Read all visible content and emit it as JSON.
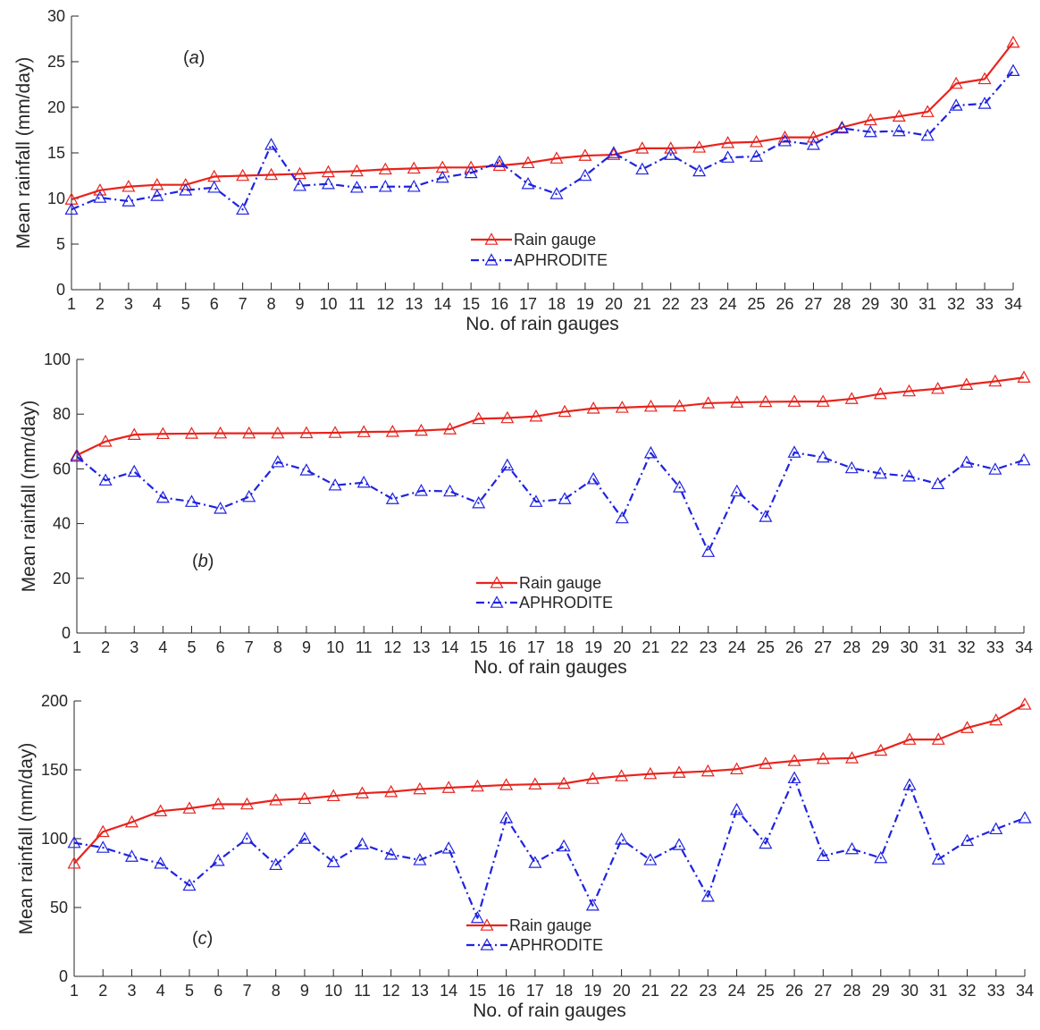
{
  "chart_data": [
    {
      "type": "line",
      "panel_label": "a",
      "xlabel": "No. of rain gauges",
      "ylabel": "Mean rainfall (mm/day)",
      "ylim": [
        0,
        30
      ],
      "yticks": [
        "0",
        "5",
        "10",
        "15",
        "20",
        "25",
        "30"
      ],
      "xlim": [
        1,
        34
      ],
      "x": [
        1,
        2,
        3,
        4,
        5,
        6,
        7,
        8,
        9,
        10,
        11,
        12,
        13,
        14,
        15,
        16,
        17,
        18,
        19,
        20,
        21,
        22,
        23,
        24,
        25,
        26,
        27,
        28,
        29,
        30,
        31,
        32,
        33,
        34
      ],
      "grid": false,
      "legend_position": "lower-center",
      "series": [
        {
          "name": "Rain gauge",
          "color": "#e8231c",
          "line_style": "solid",
          "marker": "triangle",
          "values": [
            9.9,
            10.9,
            11.3,
            11.5,
            11.5,
            12.4,
            12.5,
            12.6,
            12.7,
            12.9,
            13.0,
            13.2,
            13.3,
            13.4,
            13.4,
            13.6,
            13.9,
            14.4,
            14.7,
            14.8,
            15.5,
            15.5,
            15.6,
            16.1,
            16.2,
            16.7,
            16.7,
            17.8,
            18.6,
            19.0,
            19.5,
            22.6,
            23.1,
            27.1
          ]
        },
        {
          "name": "APHRODITE",
          "color": "#1f23e0",
          "line_style": "dash-dot",
          "marker": "triangle",
          "values": [
            8.8,
            10.1,
            9.7,
            10.3,
            10.9,
            11.2,
            8.8,
            15.9,
            11.4,
            11.6,
            11.2,
            11.3,
            11.3,
            12.3,
            12.8,
            14.0,
            11.6,
            10.5,
            12.5,
            15.0,
            13.2,
            14.8,
            13.0,
            14.5,
            14.6,
            16.3,
            15.9,
            17.7,
            17.3,
            17.4,
            16.9,
            20.2,
            20.4,
            24.0
          ]
        }
      ]
    },
    {
      "type": "line",
      "panel_label": "b",
      "xlabel": "No. of rain gauges",
      "ylabel": "Mean rainfall (mm/day)",
      "ylim": [
        0,
        100
      ],
      "yticks": [
        "0",
        "20",
        "40",
        "60",
        "80",
        "100"
      ],
      "xlim": [
        1,
        34
      ],
      "x": [
        1,
        2,
        3,
        4,
        5,
        6,
        7,
        8,
        9,
        10,
        11,
        12,
        13,
        14,
        15,
        16,
        17,
        18,
        19,
        20,
        21,
        22,
        23,
        24,
        25,
        26,
        27,
        28,
        29,
        30,
        31,
        32,
        33,
        34
      ],
      "grid": false,
      "legend_position": "lower-center",
      "series": [
        {
          "name": "Rain gauge",
          "color": "#e8231c",
          "line_style": "solid",
          "marker": "triangle",
          "values": [
            65,
            70,
            72.5,
            72.8,
            72.9,
            73,
            73,
            73,
            73.1,
            73.2,
            73.5,
            73.6,
            74,
            74.5,
            78.3,
            78.6,
            79.2,
            80.9,
            82.1,
            82.4,
            82.8,
            82.9,
            84,
            84.3,
            84.5,
            84.6,
            84.6,
            85.6,
            87.4,
            88.4,
            89.3,
            90.8,
            92,
            93.4
          ]
        },
        {
          "name": "APHRODITE",
          "color": "#1f23e0",
          "line_style": "dash-dot",
          "marker": "triangle",
          "values": [
            64.5,
            55.8,
            59,
            49.5,
            48,
            45.5,
            49.8,
            62.5,
            59.5,
            54,
            55,
            49,
            52,
            51.8,
            47.5,
            61.3,
            48,
            49,
            56.3,
            42,
            65.8,
            53.3,
            29.7,
            51.8,
            42.5,
            66,
            64.2,
            60.3,
            58.3,
            57.3,
            54.5,
            62.4,
            59.8,
            63.2
          ]
        }
      ]
    },
    {
      "type": "line",
      "panel_label": "c",
      "xlabel": "No. of rain gauges",
      "ylabel": "Mean rainfall (mm/day)",
      "ylim": [
        0,
        200
      ],
      "yticks": [
        "0",
        "50",
        "100",
        "150",
        "200"
      ],
      "xlim": [
        1,
        34
      ],
      "x": [
        1,
        2,
        3,
        4,
        5,
        6,
        7,
        8,
        9,
        10,
        11,
        12,
        13,
        14,
        15,
        16,
        17,
        18,
        19,
        20,
        21,
        22,
        23,
        24,
        25,
        26,
        27,
        28,
        29,
        30,
        31,
        32,
        33,
        34
      ],
      "grid": false,
      "legend_position": "lower-center",
      "series": [
        {
          "name": "Rain gauge",
          "color": "#e8231c",
          "line_style": "solid",
          "marker": "triangle",
          "values": [
            82,
            105,
            112,
            120,
            122,
            125,
            125,
            128,
            129,
            131,
            133,
            134,
            136,
            137,
            138,
            139,
            139.5,
            140,
            143.5,
            145.5,
            147,
            148,
            149,
            150.5,
            154.5,
            156.5,
            158,
            158.5,
            164,
            172,
            172,
            180.5,
            186,
            197.5
          ]
        },
        {
          "name": "APHRODITE",
          "color": "#1f23e0",
          "line_style": "dash-dot",
          "marker": "triangle",
          "values": [
            97,
            93.5,
            87,
            82,
            66,
            84,
            100,
            81,
            100,
            83,
            96,
            88.5,
            84.5,
            93,
            42.5,
            115,
            82.5,
            94.5,
            51.5,
            99.5,
            84.5,
            95.5,
            58,
            121,
            96.5,
            144,
            87.5,
            92.5,
            86,
            139,
            85,
            98.5,
            107,
            115
          ]
        }
      ]
    }
  ]
}
